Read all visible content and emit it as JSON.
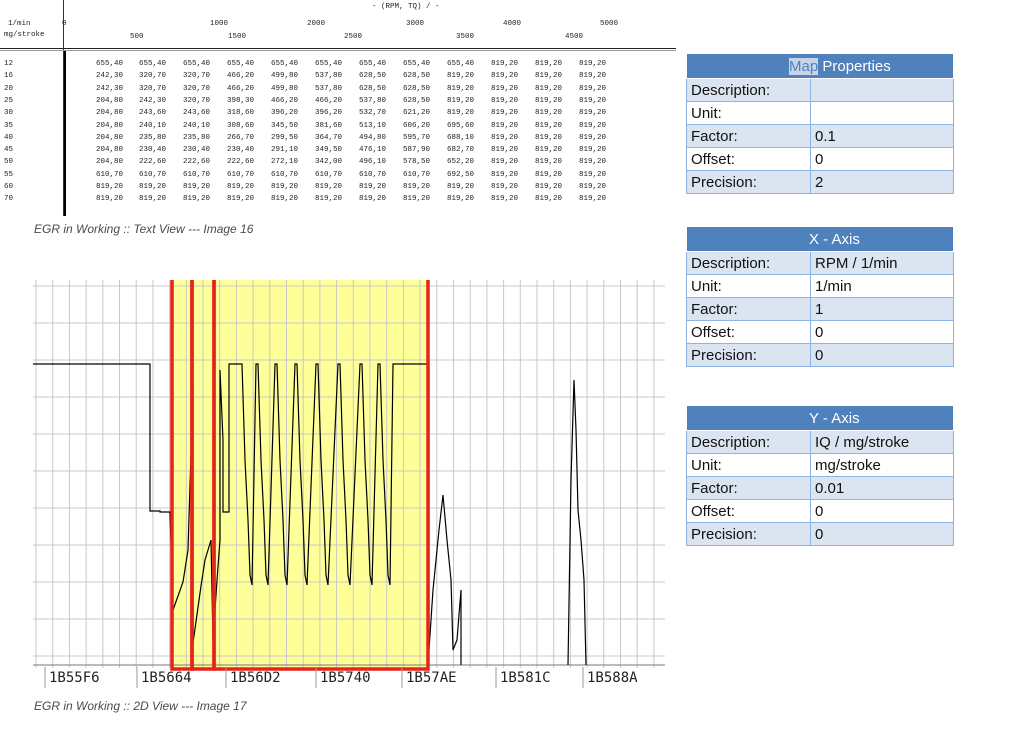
{
  "text_view": {
    "axis_title": "- (RPM, TQ) / -",
    "x_unit": "1/min",
    "y_unit": "mg/stroke",
    "rpm_top": [
      "0",
      "1000",
      "2000",
      "3000",
      "4000",
      "5000"
    ],
    "rpm_bottom": [
      "500",
      "1500",
      "2500",
      "3500",
      "4500"
    ],
    "rows": [
      {
        "label": "12",
        "values": [
          "655,40",
          "655,40",
          "655,40",
          "655,40",
          "655,40",
          "655,40",
          "655,40",
          "655,40",
          "655,40",
          "819,20",
          "819,20",
          "819,20"
        ]
      },
      {
        "label": "16",
        "values": [
          "242,30",
          "320,70",
          "320,70",
          "466,20",
          "499,80",
          "537,80",
          "628,50",
          "628,50",
          "819,20",
          "819,20",
          "819,20",
          "819,20"
        ]
      },
      {
        "label": "20",
        "values": [
          "242,30",
          "320,70",
          "320,70",
          "466,20",
          "499,80",
          "537,80",
          "628,50",
          "628,50",
          "819,20",
          "819,20",
          "819,20",
          "819,20"
        ]
      },
      {
        "label": "25",
        "values": [
          "204,80",
          "242,30",
          "320,70",
          "398,30",
          "466,20",
          "466,20",
          "537,80",
          "628,50",
          "819,20",
          "819,20",
          "819,20",
          "819,20"
        ]
      },
      {
        "label": "30",
        "values": [
          "204,80",
          "243,60",
          "243,60",
          "318,60",
          "396,20",
          "396,20",
          "532,70",
          "621,20",
          "819,20",
          "819,20",
          "819,20",
          "819,20"
        ]
      },
      {
        "label": "35",
        "values": [
          "204,80",
          "240,10",
          "240,10",
          "308,60",
          "345,50",
          "381,60",
          "513,10",
          "606,20",
          "695,60",
          "819,20",
          "819,20",
          "819,20"
        ]
      },
      {
        "label": "40",
        "values": [
          "204,80",
          "235,80",
          "235,80",
          "266,70",
          "299,50",
          "364,70",
          "494,80",
          "595,70",
          "688,10",
          "819,20",
          "819,20",
          "819,20"
        ]
      },
      {
        "label": "45",
        "values": [
          "204,80",
          "230,40",
          "230,40",
          "230,40",
          "291,10",
          "349,50",
          "476,10",
          "587,90",
          "682,70",
          "819,20",
          "819,20",
          "819,20"
        ]
      },
      {
        "label": "50",
        "values": [
          "204,80",
          "222,60",
          "222,60",
          "222,60",
          "272,10",
          "342,00",
          "496,10",
          "578,50",
          "652,20",
          "819,20",
          "819,20",
          "819,20"
        ]
      },
      {
        "label": "55",
        "values": [
          "610,70",
          "610,70",
          "610,70",
          "610,70",
          "610,70",
          "610,70",
          "610,70",
          "610,70",
          "692,50",
          "819,20",
          "819,20",
          "819,20"
        ]
      },
      {
        "label": "60",
        "values": [
          "819,20",
          "819,20",
          "819,20",
          "819,20",
          "819,20",
          "819,20",
          "819,20",
          "819,20",
          "819,20",
          "819,20",
          "819,20",
          "819,20"
        ]
      },
      {
        "label": "70",
        "values": [
          "819,20",
          "819,20",
          "819,20",
          "819,20",
          "819,20",
          "819,20",
          "819,20",
          "819,20",
          "819,20",
          "819,20",
          "819,20",
          "819,20"
        ]
      }
    ],
    "caption": "EGR in Working :: Text View --- Image 16"
  },
  "map_properties": {
    "title_highlight": "Map",
    "title_rest": " Properties",
    "rows": [
      {
        "key": "Description:",
        "value": ""
      },
      {
        "key": "Unit:",
        "value": ""
      },
      {
        "key": "Factor:",
        "value": "0.1"
      },
      {
        "key": "Offset:",
        "value": "0"
      },
      {
        "key": "Precision:",
        "value": "2"
      }
    ]
  },
  "x_axis": {
    "title": "X - Axis",
    "rows": [
      {
        "key": "Description:",
        "value": "RPM / 1/min"
      },
      {
        "key": "Unit:",
        "value": "1/min"
      },
      {
        "key": "Factor:",
        "value": "1"
      },
      {
        "key": "Offset:",
        "value": "0"
      },
      {
        "key": "Precision:",
        "value": "0"
      }
    ]
  },
  "y_axis": {
    "title": "Y - Axis",
    "rows": [
      {
        "key": "Description:",
        "value": "IQ / mg/stroke"
      },
      {
        "key": "Unit:",
        "value": "mg/stroke"
      },
      {
        "key": "Factor:",
        "value": "0.01"
      },
      {
        "key": "Offset:",
        "value": "0"
      },
      {
        "key": "Precision:",
        "value": "0"
      }
    ]
  },
  "view2d": {
    "addresses": [
      "1B55F6",
      "1B5664",
      "1B56D2",
      "1B5740",
      "1B57AE",
      "1B581C",
      "1B588A"
    ],
    "caption": "EGR in Working :: 2D View --- Image 17"
  },
  "colors": {
    "highlight_fill": "#ffff99",
    "selection_border": "#e8231c",
    "grid": "#c8c8c8",
    "trace": "#000000",
    "table_header": "#4f81bd"
  }
}
